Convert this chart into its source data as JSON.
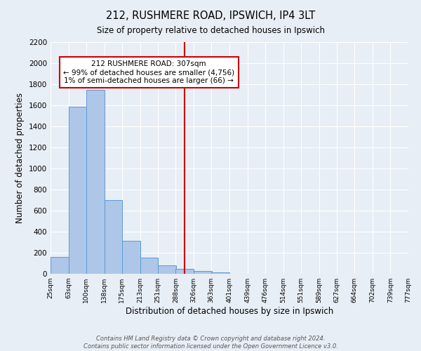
{
  "title": "212, RUSHMERE ROAD, IPSWICH, IP4 3LT",
  "subtitle": "Size of property relative to detached houses in Ipswich",
  "xlabel": "Distribution of detached houses by size in Ipswich",
  "ylabel": "Number of detached properties",
  "bin_labels": [
    "25sqm",
    "63sqm",
    "100sqm",
    "138sqm",
    "175sqm",
    "213sqm",
    "251sqm",
    "288sqm",
    "326sqm",
    "363sqm",
    "401sqm",
    "439sqm",
    "476sqm",
    "514sqm",
    "551sqm",
    "589sqm",
    "627sqm",
    "664sqm",
    "702sqm",
    "739sqm",
    "777sqm"
  ],
  "bin_edges": [
    25,
    63,
    100,
    138,
    175,
    213,
    251,
    288,
    326,
    363,
    401,
    439,
    476,
    514,
    551,
    589,
    627,
    664,
    702,
    739,
    777
  ],
  "bar_heights": [
    160,
    1590,
    1750,
    700,
    315,
    155,
    80,
    45,
    25,
    15,
    0,
    0,
    0,
    0,
    0,
    0,
    0,
    0,
    0,
    0
  ],
  "bar_color": "#aec6e8",
  "bar_edge_color": "#5b9bd5",
  "vline_color": "#cc0000",
  "vline_x": 307,
  "annotation_title": "212 RUSHMERE ROAD: 307sqm",
  "annotation_line1": "← 99% of detached houses are smaller (4,756)",
  "annotation_line2": "1% of semi-detached houses are larger (66) →",
  "annotation_box_color": "#ffffff",
  "annotation_box_edge": "#cc0000",
  "ylim": [
    0,
    2200
  ],
  "yticks": [
    0,
    200,
    400,
    600,
    800,
    1000,
    1200,
    1400,
    1600,
    1800,
    2000,
    2200
  ],
  "background_color": "#e8eef5",
  "grid_color": "#ffffff",
  "footer_line1": "Contains HM Land Registry data © Crown copyright and database right 2024.",
  "footer_line2": "Contains public sector information licensed under the Open Government Licence v3.0."
}
